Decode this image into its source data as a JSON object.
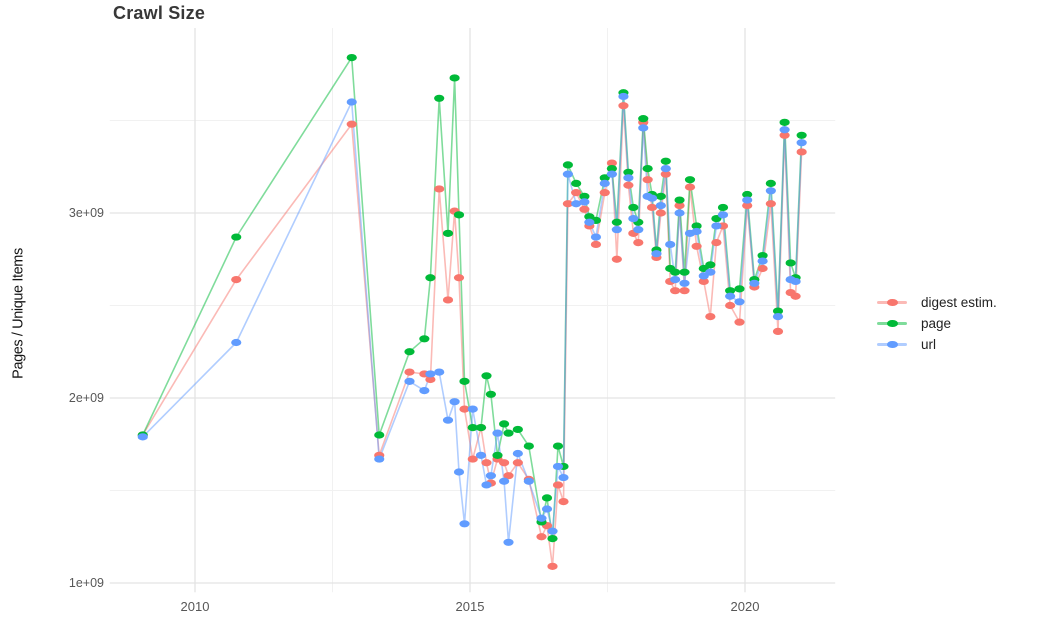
{
  "title": "Crawl Size",
  "axes": {
    "y": {
      "label": "Pages / Unique Items",
      "ticks": [
        {
          "label": "3e+09",
          "value": 3
        },
        {
          "label": "2e+09",
          "value": 2
        },
        {
          "label": "1e+09",
          "value": 1
        }
      ]
    },
    "x": {
      "label": "",
      "ticks": [
        {
          "label": "2010",
          "value": 2010
        },
        {
          "label": "2015",
          "value": 2015
        },
        {
          "label": "2020",
          "value": 2020
        }
      ]
    }
  },
  "legend": {
    "position": "right",
    "items": [
      {
        "label": "digest estim.",
        "color": "#F8766D"
      },
      {
        "label": "page",
        "color": "#00BA38"
      },
      {
        "label": "url",
        "color": "#619CFF"
      }
    ]
  },
  "chart_data": {
    "type": "line",
    "title": "Crawl Size",
    "xlabel": "",
    "ylabel": "Pages / Unique Items",
    "x_unit": "year (decimal, crawl date)",
    "y_unit": "count x 1e+09 (billions)",
    "x_range": [
      2008.45,
      2021.64
    ],
    "y_range": [
      0.95,
      4.0
    ],
    "grid": {
      "x_major": [
        2010,
        2015,
        2020
      ],
      "x_minor": [
        2012.5,
        2017.5
      ],
      "y_major": [
        1,
        2,
        3
      ],
      "y_minor": [
        1.5,
        2.5,
        3.5
      ]
    },
    "points_visible": true,
    "x": [
      2009.05,
      2010.75,
      2012.85,
      2013.35,
      2013.9,
      2014.17,
      2014.28,
      2014.44,
      2014.6,
      2014.72,
      2014.8,
      2014.9,
      2015.05,
      2015.2,
      2015.3,
      2015.38,
      2015.5,
      2015.62,
      2015.7,
      2015.87,
      2016.07,
      2016.3,
      2016.4,
      2016.5,
      2016.6,
      2016.7,
      2016.78,
      2016.93,
      2017.08,
      2017.17,
      2017.29,
      2017.45,
      2017.58,
      2017.67,
      2017.79,
      2017.88,
      2017.97,
      2018.06,
      2018.15,
      2018.23,
      2018.31,
      2018.39,
      2018.47,
      2018.56,
      2018.64,
      2018.73,
      2018.81,
      2018.9,
      2019.0,
      2019.12,
      2019.25,
      2019.37,
      2019.48,
      2019.6,
      2019.73,
      2019.9,
      2020.04,
      2020.17,
      2020.32,
      2020.47,
      2020.6,
      2020.72,
      2020.83,
      2020.92,
      2021.03
    ],
    "series": [
      {
        "name": "digest estim.",
        "color": "#F8766D",
        "values": [
          1.8,
          2.64,
          3.48,
          1.69,
          2.14,
          2.13,
          2.1,
          3.13,
          2.53,
          3.01,
          2.65,
          1.94,
          1.67,
          1.84,
          1.65,
          1.54,
          1.67,
          1.65,
          1.58,
          1.65,
          1.56,
          1.25,
          1.31,
          1.09,
          1.53,
          1.44,
          3.05,
          3.11,
          3.02,
          2.93,
          2.83,
          3.11,
          3.27,
          2.75,
          3.58,
          3.15,
          2.89,
          2.84,
          3.49,
          3.18,
          3.03,
          2.76,
          3.0,
          3.21,
          2.63,
          2.58,
          3.04,
          2.58,
          3.14,
          2.82,
          2.63,
          2.44,
          2.84,
          2.93,
          2.5,
          2.41,
          3.04,
          2.6,
          2.7,
          3.05,
          2.36,
          3.42,
          2.57,
          2.55,
          3.33
        ]
      },
      {
        "name": "page",
        "color": "#00BA38",
        "values": [
          1.8,
          2.87,
          3.84,
          1.8,
          2.25,
          2.32,
          2.65,
          3.62,
          2.89,
          3.73,
          2.99,
          2.09,
          1.84,
          1.84,
          2.12,
          2.02,
          1.69,
          1.86,
          1.81,
          1.83,
          1.74,
          1.33,
          1.46,
          1.24,
          1.74,
          1.63,
          3.26,
          3.16,
          3.09,
          2.98,
          2.96,
          3.19,
          3.24,
          2.95,
          3.65,
          3.22,
          3.03,
          2.95,
          3.51,
          3.24,
          3.1,
          2.8,
          3.09,
          3.28,
          2.7,
          2.68,
          3.07,
          2.68,
          3.18,
          2.93,
          2.7,
          2.72,
          2.97,
          3.03,
          2.58,
          2.59,
          3.1,
          2.64,
          2.77,
          3.16,
          2.47,
          3.49,
          2.73,
          2.65,
          3.42
        ]
      },
      {
        "name": "url",
        "color": "#619CFF",
        "values": [
          1.79,
          2.3,
          3.6,
          1.67,
          2.09,
          2.04,
          2.13,
          2.14,
          1.88,
          1.98,
          1.6,
          1.32,
          1.94,
          1.69,
          1.53,
          1.58,
          1.81,
          1.55,
          1.22,
          1.7,
          1.55,
          1.35,
          1.4,
          1.28,
          1.63,
          1.57,
          3.21,
          3.05,
          3.06,
          2.95,
          2.87,
          3.16,
          3.21,
          2.91,
          3.63,
          3.19,
          2.97,
          2.91,
          3.46,
          3.09,
          3.08,
          2.78,
          3.04,
          3.24,
          2.83,
          2.64,
          3.0,
          2.62,
          2.89,
          2.9,
          2.66,
          2.68,
          2.93,
          2.99,
          2.55,
          2.52,
          3.07,
          2.62,
          2.74,
          3.12,
          2.44,
          3.45,
          2.64,
          2.63,
          3.38
        ]
      }
    ],
    "legend_entries": [
      "digest estim.",
      "page",
      "url"
    ]
  }
}
